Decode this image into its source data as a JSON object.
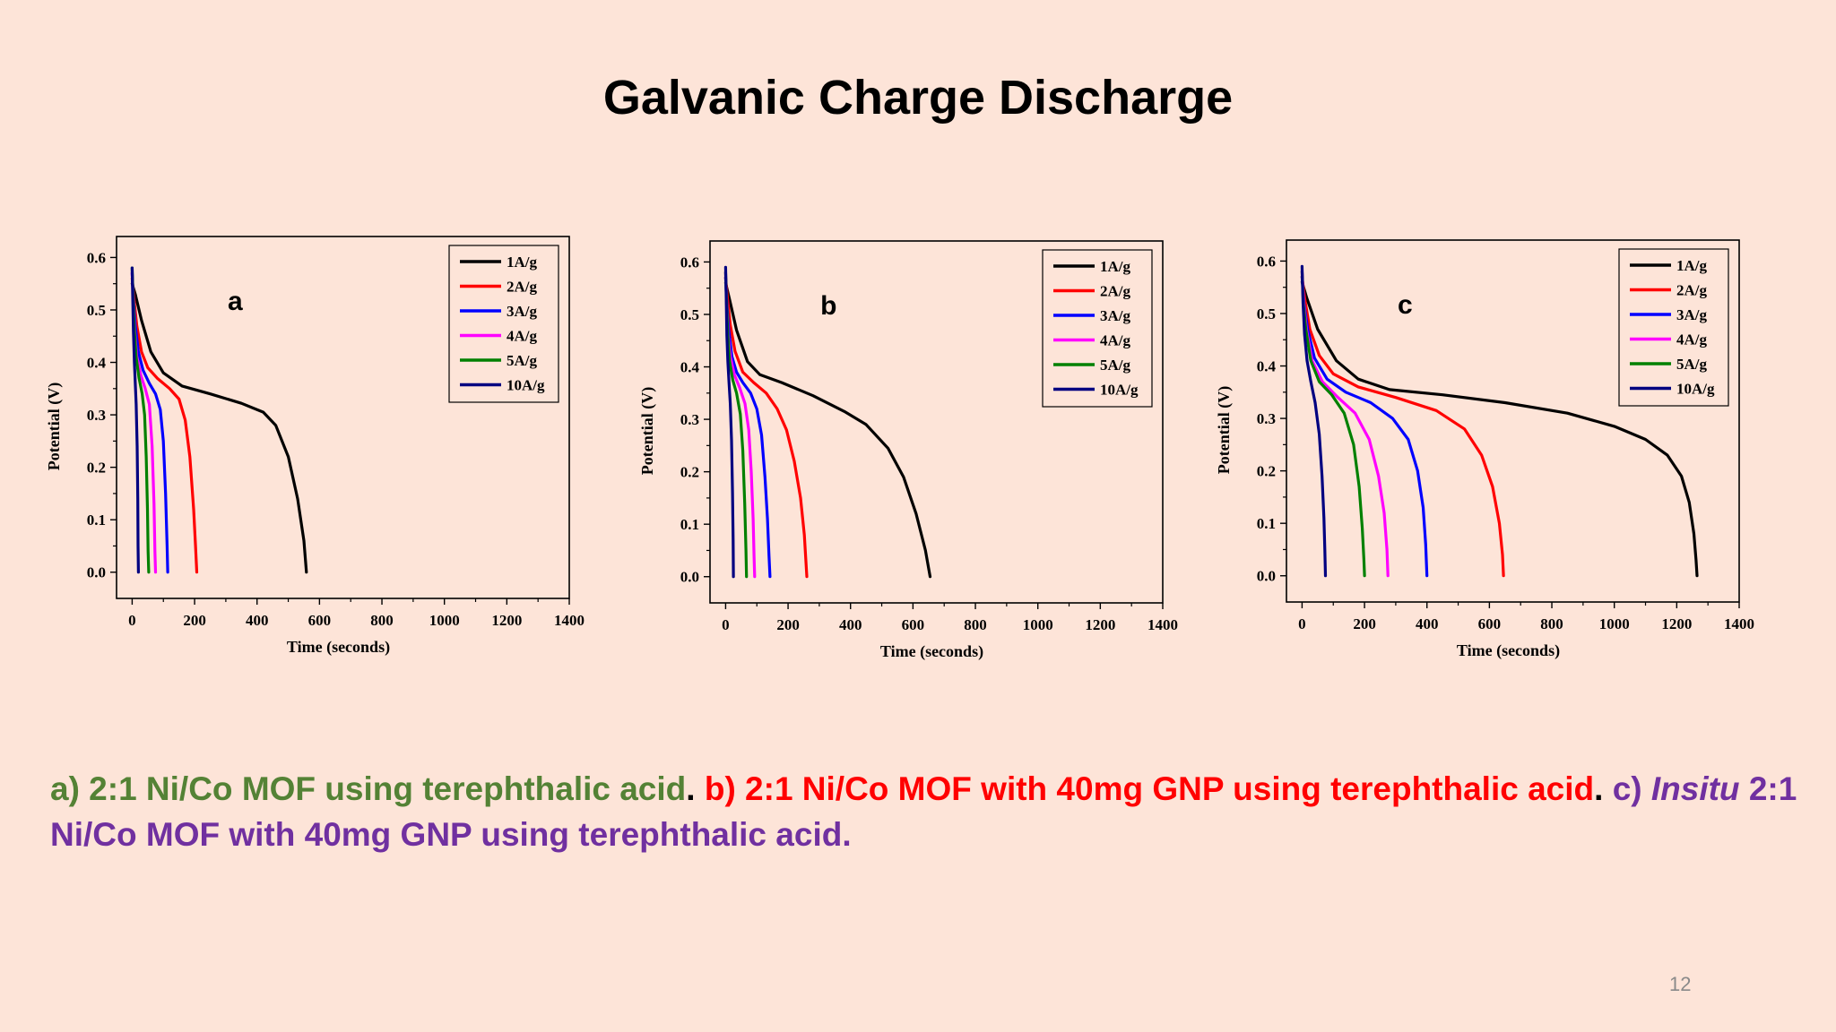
{
  "slide": {
    "title": "Galvanic Charge Discharge",
    "page_number": "12"
  },
  "colors": {
    "background": "#fde4d8",
    "panel_a": "#548235",
    "panel_b": "#ff0000",
    "panel_c": "#7030a0",
    "separator": "#000000"
  },
  "caption": {
    "a_text": "a) 2:1 Ni/Co MOF using terephthalic acid",
    "sep1": ". ",
    "b_text": "b) 2:1 Ni/Co MOF with 40mg GNP using terephthalic acid",
    "sep2": ". ",
    "c_prefix": "c) ",
    "c_italic": "Insitu",
    "c_rest": " 2:1 Ni/Co MOF with 40mg GNP using terephthalic acid."
  },
  "chart_data": [
    {
      "id": "a",
      "type": "line",
      "panel_label": "a",
      "panel_label_color": "#548235",
      "xlabel": "Time (seconds)",
      "ylabel": "Potential (V)",
      "xlim": [
        -50,
        1400
      ],
      "ylim": [
        -0.05,
        0.64
      ],
      "xticks": [
        "0",
        "200",
        "400",
        "600",
        "800",
        "1000",
        "1200",
        "1400"
      ],
      "yticks": [
        "0.0",
        "0.1",
        "0.2",
        "0.3",
        "0.4",
        "0.5",
        "0.6"
      ],
      "legend_position": "top-right",
      "series": [
        {
          "name": "1A/g",
          "color": "#000000",
          "points": [
            [
              0,
              0.55
            ],
            [
              10,
              0.53
            ],
            [
              30,
              0.48
            ],
            [
              60,
              0.42
            ],
            [
              100,
              0.38
            ],
            [
              160,
              0.355
            ],
            [
              250,
              0.34
            ],
            [
              350,
              0.322
            ],
            [
              420,
              0.305
            ],
            [
              460,
              0.28
            ],
            [
              500,
              0.22
            ],
            [
              530,
              0.14
            ],
            [
              550,
              0.06
            ],
            [
              558,
              0.0
            ]
          ]
        },
        {
          "name": "2A/g",
          "color": "#ff0000",
          "points": [
            [
              0,
              0.56
            ],
            [
              6,
              0.52
            ],
            [
              15,
              0.47
            ],
            [
              30,
              0.42
            ],
            [
              50,
              0.39
            ],
            [
              80,
              0.37
            ],
            [
              120,
              0.35
            ],
            [
              150,
              0.33
            ],
            [
              170,
              0.29
            ],
            [
              185,
              0.22
            ],
            [
              197,
              0.12
            ],
            [
              203,
              0.05
            ],
            [
              207,
              0.0
            ]
          ]
        },
        {
          "name": "3A/g",
          "color": "#0000ff",
          "points": [
            [
              0,
              0.57
            ],
            [
              4,
              0.52
            ],
            [
              10,
              0.47
            ],
            [
              20,
              0.42
            ],
            [
              35,
              0.385
            ],
            [
              55,
              0.36
            ],
            [
              75,
              0.34
            ],
            [
              90,
              0.31
            ],
            [
              100,
              0.25
            ],
            [
              107,
              0.15
            ],
            [
              112,
              0.05
            ],
            [
              114,
              0.0
            ]
          ]
        },
        {
          "name": "4A/g",
          "color": "#ff00ff",
          "points": [
            [
              0,
              0.57
            ],
            [
              3,
              0.52
            ],
            [
              8,
              0.46
            ],
            [
              15,
              0.41
            ],
            [
              28,
              0.375
            ],
            [
              42,
              0.35
            ],
            [
              55,
              0.32
            ],
            [
              64,
              0.24
            ],
            [
              70,
              0.13
            ],
            [
              73,
              0.04
            ],
            [
              75,
              0.0
            ]
          ]
        },
        {
          "name": "5A/g",
          "color": "#008000",
          "points": [
            [
              0,
              0.58
            ],
            [
              3,
              0.52
            ],
            [
              7,
              0.46
            ],
            [
              13,
              0.41
            ],
            [
              22,
              0.37
            ],
            [
              32,
              0.34
            ],
            [
              40,
              0.3
            ],
            [
              45,
              0.22
            ],
            [
              49,
              0.12
            ],
            [
              51,
              0.04
            ],
            [
              53,
              0.0
            ]
          ]
        },
        {
          "name": "10A/g",
          "color": "#000080",
          "points": [
            [
              0,
              0.58
            ],
            [
              2,
              0.52
            ],
            [
              4,
              0.46
            ],
            [
              7,
              0.4
            ],
            [
              10,
              0.36
            ],
            [
              13,
              0.32
            ],
            [
              16,
              0.24
            ],
            [
              18,
              0.14
            ],
            [
              19,
              0.05
            ],
            [
              20,
              0.0
            ]
          ]
        }
      ]
    },
    {
      "id": "b",
      "type": "line",
      "panel_label": "b",
      "panel_label_color": "#ff0000",
      "xlabel": "Time (seconds)",
      "ylabel": "Potential (V)",
      "xlim": [
        -50,
        1400
      ],
      "ylim": [
        -0.05,
        0.64
      ],
      "xticks": [
        "0",
        "200",
        "400",
        "600",
        "800",
        "1000",
        "1200",
        "1400"
      ],
      "yticks": [
        "0.0",
        "0.1",
        "0.2",
        "0.3",
        "0.4",
        "0.5",
        "0.6"
      ],
      "legend_position": "top-right",
      "series": [
        {
          "name": "1A/g",
          "color": "#000000",
          "points": [
            [
              0,
              0.56
            ],
            [
              12,
              0.53
            ],
            [
              35,
              0.47
            ],
            [
              70,
              0.41
            ],
            [
              110,
              0.385
            ],
            [
              180,
              0.37
            ],
            [
              280,
              0.345
            ],
            [
              380,
              0.315
            ],
            [
              450,
              0.29
            ],
            [
              520,
              0.245
            ],
            [
              570,
              0.19
            ],
            [
              610,
              0.12
            ],
            [
              640,
              0.05
            ],
            [
              655,
              0.0
            ]
          ]
        },
        {
          "name": "2A/g",
          "color": "#ff0000",
          "points": [
            [
              0,
              0.57
            ],
            [
              6,
              0.53
            ],
            [
              15,
              0.48
            ],
            [
              30,
              0.43
            ],
            [
              55,
              0.39
            ],
            [
              90,
              0.37
            ],
            [
              130,
              0.35
            ],
            [
              165,
              0.32
            ],
            [
              195,
              0.28
            ],
            [
              220,
              0.22
            ],
            [
              240,
              0.15
            ],
            [
              252,
              0.08
            ],
            [
              260,
              0.0
            ]
          ]
        },
        {
          "name": "3A/g",
          "color": "#0000ff",
          "points": [
            [
              0,
              0.57
            ],
            [
              4,
              0.52
            ],
            [
              10,
              0.47
            ],
            [
              20,
              0.42
            ],
            [
              35,
              0.39
            ],
            [
              55,
              0.37
            ],
            [
              80,
              0.35
            ],
            [
              100,
              0.32
            ],
            [
              115,
              0.27
            ],
            [
              126,
              0.19
            ],
            [
              134,
              0.11
            ],
            [
              139,
              0.04
            ],
            [
              142,
              0.0
            ]
          ]
        },
        {
          "name": "4A/g",
          "color": "#ff00ff",
          "points": [
            [
              0,
              0.58
            ],
            [
              3,
              0.52
            ],
            [
              8,
              0.46
            ],
            [
              15,
              0.42
            ],
            [
              28,
              0.385
            ],
            [
              45,
              0.36
            ],
            [
              62,
              0.33
            ],
            [
              74,
              0.28
            ],
            [
              82,
              0.2
            ],
            [
              88,
              0.11
            ],
            [
              91,
              0.04
            ],
            [
              93,
              0.0
            ]
          ]
        },
        {
          "name": "5A/g",
          "color": "#008000",
          "points": [
            [
              0,
              0.58
            ],
            [
              3,
              0.52
            ],
            [
              7,
              0.46
            ],
            [
              13,
              0.41
            ],
            [
              23,
              0.375
            ],
            [
              35,
              0.35
            ],
            [
              47,
              0.31
            ],
            [
              55,
              0.24
            ],
            [
              61,
              0.14
            ],
            [
              65,
              0.05
            ],
            [
              67,
              0.0
            ]
          ]
        },
        {
          "name": "10A/g",
          "color": "#000080",
          "points": [
            [
              0,
              0.59
            ],
            [
              2,
              0.53
            ],
            [
              4,
              0.46
            ],
            [
              7,
              0.41
            ],
            [
              11,
              0.37
            ],
            [
              15,
              0.33
            ],
            [
              19,
              0.26
            ],
            [
              22,
              0.16
            ],
            [
              24,
              0.07
            ],
            [
              25,
              0.0
            ]
          ]
        }
      ]
    },
    {
      "id": "c",
      "type": "line",
      "panel_label": "c",
      "panel_label_color": "#7030a0",
      "xlabel": "Time (seconds)",
      "ylabel": "Potential (V)",
      "xlim": [
        -50,
        1400
      ],
      "ylim": [
        -0.05,
        0.64
      ],
      "xticks": [
        "0",
        "200",
        "400",
        "600",
        "800",
        "1000",
        "1200",
        "1400"
      ],
      "yticks": [
        "0.0",
        "0.1",
        "0.2",
        "0.3",
        "0.4",
        "0.5",
        "0.6"
      ],
      "legend_position": "top-right",
      "series": [
        {
          "name": "1A/g",
          "color": "#000000",
          "points": [
            [
              0,
              0.56
            ],
            [
              15,
              0.53
            ],
            [
              50,
              0.47
            ],
            [
              110,
              0.41
            ],
            [
              180,
              0.375
            ],
            [
              280,
              0.355
            ],
            [
              450,
              0.345
            ],
            [
              650,
              0.33
            ],
            [
              850,
              0.31
            ],
            [
              1000,
              0.285
            ],
            [
              1100,
              0.26
            ],
            [
              1170,
              0.23
            ],
            [
              1215,
              0.19
            ],
            [
              1240,
              0.14
            ],
            [
              1255,
              0.08
            ],
            [
              1262,
              0.03
            ],
            [
              1265,
              0.0
            ]
          ]
        },
        {
          "name": "2A/g",
          "color": "#ff0000",
          "points": [
            [
              0,
              0.57
            ],
            [
              8,
              0.53
            ],
            [
              25,
              0.47
            ],
            [
              55,
              0.42
            ],
            [
              100,
              0.385
            ],
            [
              180,
              0.36
            ],
            [
              300,
              0.34
            ],
            [
              430,
              0.315
            ],
            [
              520,
              0.28
            ],
            [
              575,
              0.23
            ],
            [
              610,
              0.17
            ],
            [
              632,
              0.1
            ],
            [
              642,
              0.04
            ],
            [
              645,
              0.0
            ]
          ]
        },
        {
          "name": "3A/g",
          "color": "#0000ff",
          "points": [
            [
              0,
              0.57
            ],
            [
              6,
              0.52
            ],
            [
              18,
              0.47
            ],
            [
              40,
              0.415
            ],
            [
              80,
              0.375
            ],
            [
              140,
              0.35
            ],
            [
              220,
              0.33
            ],
            [
              290,
              0.3
            ],
            [
              340,
              0.26
            ],
            [
              370,
              0.2
            ],
            [
              388,
              0.13
            ],
            [
              396,
              0.06
            ],
            [
              400,
              0.0
            ]
          ]
        },
        {
          "name": "4A/g",
          "color": "#ff00ff",
          "points": [
            [
              0,
              0.58
            ],
            [
              5,
              0.52
            ],
            [
              14,
              0.47
            ],
            [
              32,
              0.41
            ],
            [
              65,
              0.37
            ],
            [
              115,
              0.34
            ],
            [
              170,
              0.31
            ],
            [
              215,
              0.26
            ],
            [
              245,
              0.19
            ],
            [
              263,
              0.12
            ],
            [
              272,
              0.05
            ],
            [
              275,
              0.0
            ]
          ]
        },
        {
          "name": "5A/g",
          "color": "#008000",
          "points": [
            [
              0,
              0.58
            ],
            [
              4,
              0.52
            ],
            [
              12,
              0.47
            ],
            [
              28,
              0.41
            ],
            [
              55,
              0.37
            ],
            [
              95,
              0.345
            ],
            [
              135,
              0.31
            ],
            [
              165,
              0.25
            ],
            [
              183,
              0.17
            ],
            [
              193,
              0.09
            ],
            [
              198,
              0.03
            ],
            [
              200,
              0.0
            ]
          ]
        },
        {
          "name": "10A/g",
          "color": "#000080",
          "points": [
            [
              0,
              0.59
            ],
            [
              3,
              0.52
            ],
            [
              8,
              0.46
            ],
            [
              16,
              0.41
            ],
            [
              28,
              0.37
            ],
            [
              42,
              0.33
            ],
            [
              55,
              0.27
            ],
            [
              64,
              0.19
            ],
            [
              70,
              0.11
            ],
            [
              73,
              0.05
            ],
            [
              75,
              0.0
            ]
          ]
        }
      ]
    }
  ]
}
